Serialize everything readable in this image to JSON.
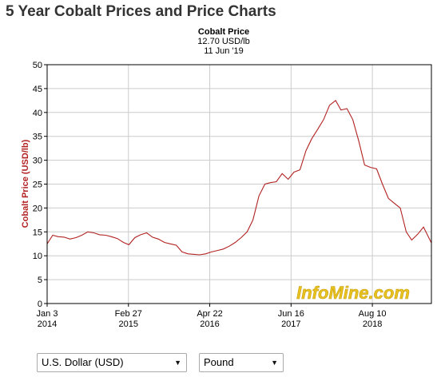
{
  "page": {
    "title": "5 Year Cobalt Prices and Price Charts"
  },
  "caption": {
    "title": "Cobalt Price",
    "price": "12.70 USD/lb",
    "date": "11 Jun '19"
  },
  "watermark": "InfoMine.com",
  "controls": {
    "currency": "U.S. Dollar (USD)",
    "unit": "Pound"
  },
  "colors": {
    "series": "#b22222",
    "axis_label": "#b22222",
    "grid": "#cccccc",
    "watermark": "#e8c21f"
  },
  "chart_data": {
    "type": "line",
    "ylabel": "Cobalt Price (USD/lb)",
    "xlabel": "",
    "ylim": [
      0,
      50
    ],
    "yticks": [
      0,
      5,
      10,
      15,
      20,
      25,
      30,
      35,
      40,
      45,
      50
    ],
    "xlim": [
      "2014-01-03",
      "2019-06-11"
    ],
    "xticks": [
      {
        "date": "2014-01-03",
        "line1": "Jan 3",
        "line2": "2014"
      },
      {
        "date": "2015-02-27",
        "line1": "Feb 27",
        "line2": "2015"
      },
      {
        "date": "2016-04-22",
        "line1": "Apr 22",
        "line2": "2016"
      },
      {
        "date": "2017-06-16",
        "line1": "Jun 16",
        "line2": "2017"
      },
      {
        "date": "2018-08-10",
        "line1": "Aug 10",
        "line2": "2018"
      }
    ],
    "grid": true,
    "series": [
      {
        "x": [
          "2014-01-03",
          "2014-02-01",
          "2014-03-01",
          "2014-04-01",
          "2014-05-01",
          "2014-06-01",
          "2014-07-01",
          "2014-08-01",
          "2014-09-01",
          "2014-10-01",
          "2014-11-01",
          "2014-12-01",
          "2015-01-01",
          "2015-02-01",
          "2015-03-01",
          "2015-04-01",
          "2015-05-01",
          "2015-06-01",
          "2015-07-01",
          "2015-08-01",
          "2015-09-01",
          "2015-10-01",
          "2015-11-01",
          "2015-12-01",
          "2016-01-01",
          "2016-02-01",
          "2016-03-01",
          "2016-04-01",
          "2016-05-01",
          "2016-06-01",
          "2016-07-01",
          "2016-08-01",
          "2016-09-01",
          "2016-10-01",
          "2016-11-01",
          "2016-12-01",
          "2017-01-01",
          "2017-02-01",
          "2017-03-01",
          "2017-04-01",
          "2017-05-01",
          "2017-06-01",
          "2017-07-01",
          "2017-08-01",
          "2017-09-01",
          "2017-10-01",
          "2017-11-01",
          "2017-12-01",
          "2018-01-01",
          "2018-02-01",
          "2018-03-01",
          "2018-04-01",
          "2018-05-01",
          "2018-06-01",
          "2018-07-01",
          "2018-08-01",
          "2018-09-01",
          "2018-10-01",
          "2018-11-01",
          "2018-12-01",
          "2019-01-01",
          "2019-02-01",
          "2019-03-01",
          "2019-04-01",
          "2019-05-01",
          "2019-06-11"
        ],
        "y": [
          12.5,
          14.3,
          14.0,
          13.9,
          13.5,
          13.8,
          14.3,
          15.0,
          14.8,
          14.4,
          14.3,
          14.0,
          13.6,
          12.8,
          12.3,
          13.8,
          14.4,
          14.8,
          13.9,
          13.5,
          12.8,
          12.5,
          12.2,
          10.8,
          10.4,
          10.3,
          10.2,
          10.4,
          10.8,
          11.1,
          11.4,
          12.0,
          12.8,
          13.8,
          15.0,
          17.5,
          22.5,
          25.0,
          25.3,
          25.5,
          27.2,
          26.0,
          27.5,
          28.0,
          32.0,
          34.5,
          36.5,
          38.5,
          41.5,
          42.5,
          40.5,
          40.8,
          38.5,
          34.0,
          29.0,
          28.5,
          28.2,
          25.0,
          22.0,
          21.0,
          20.0,
          15.0,
          13.3,
          14.5,
          16.0,
          12.7
        ]
      }
    ]
  }
}
